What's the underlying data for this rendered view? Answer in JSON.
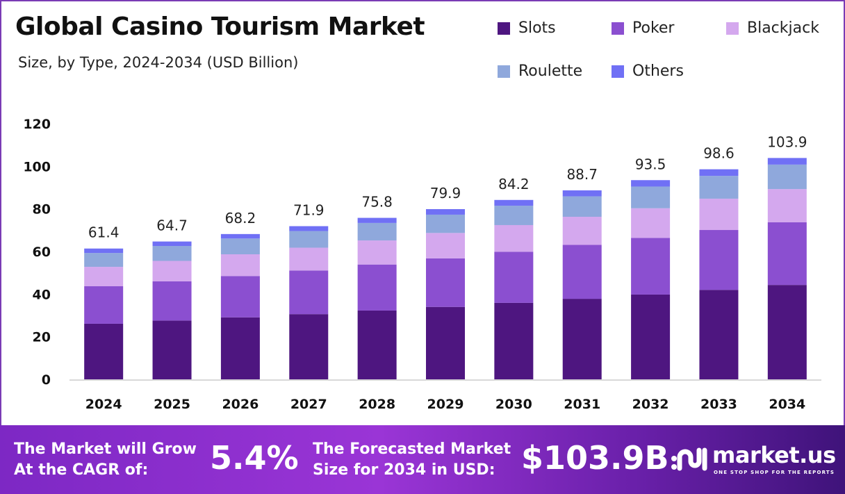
{
  "chart_data": {
    "type": "bar",
    "stacked": true,
    "title": "Global Casino Tourism Market",
    "subtitle": "Size, by Type, 2024-2034 (USD Billion)",
    "categories": [
      "2024",
      "2025",
      "2026",
      "2027",
      "2028",
      "2029",
      "2030",
      "2031",
      "2032",
      "2033",
      "2034"
    ],
    "series": [
      {
        "name": "Slots",
        "color": "#4e1680",
        "values": [
          26.1,
          27.6,
          29.1,
          30.6,
          32.3,
          34.0,
          35.9,
          37.8,
          39.8,
          42.0,
          44.3
        ]
      },
      {
        "name": "Poker",
        "color": "#8b4fd0",
        "values": [
          17.6,
          18.4,
          19.4,
          20.5,
          21.6,
          22.8,
          24.0,
          25.3,
          26.6,
          28.1,
          29.4
        ]
      },
      {
        "name": "Blackjack",
        "color": "#d4a8ee",
        "values": [
          9.1,
          9.6,
          10.2,
          10.7,
          11.3,
          11.9,
          12.5,
          13.2,
          13.9,
          14.7,
          15.6
        ]
      },
      {
        "name": "Roulette",
        "color": "#8fa8dc",
        "values": [
          6.5,
          7.0,
          7.4,
          7.8,
          8.2,
          8.6,
          9.1,
          9.6,
          10.2,
          10.7,
          11.5
        ]
      },
      {
        "name": "Others",
        "color": "#7070f5",
        "values": [
          2.1,
          2.1,
          2.1,
          2.3,
          2.4,
          2.6,
          2.7,
          2.8,
          3.0,
          3.1,
          3.1
        ]
      }
    ],
    "totals": [
      "61.4",
      "64.7",
      "68.2",
      "71.9",
      "75.8",
      "79.9",
      "84.2",
      "88.7",
      "93.5",
      "98.6",
      "103.9"
    ],
    "ylim": [
      0,
      120
    ],
    "yticks": [
      "0",
      "20",
      "40",
      "60",
      "80",
      "100",
      "120"
    ],
    "grid": false,
    "legend": "top-right"
  },
  "footer": {
    "cagr_label_1": "The Market will Grow",
    "cagr_label_2": "At the CAGR of:",
    "cagr_value": "5.4%",
    "forecast_label_1": "The Forecasted Market",
    "forecast_label_2": "Size for 2034 in USD:",
    "forecast_value": "$103.9B",
    "brand": "market.us",
    "tagline": "ONE STOP SHOP FOR THE REPORTS"
  }
}
